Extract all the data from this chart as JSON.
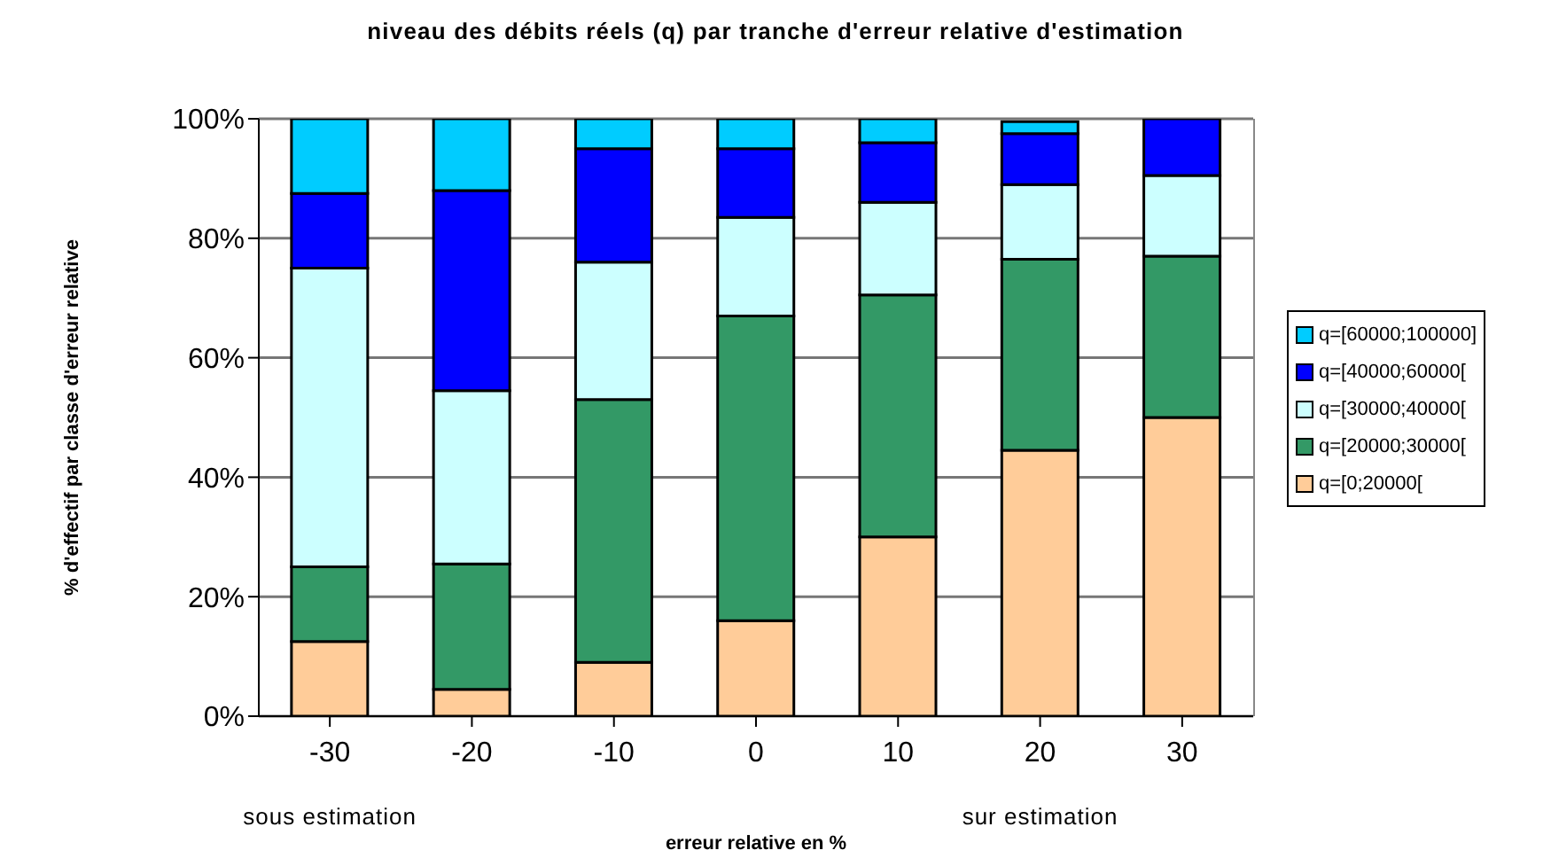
{
  "chart_data": {
    "type": "bar",
    "stacked": true,
    "title": "niveau des débits réels (q) par tranche d'erreur relative d'estimation",
    "xlabel": "erreur relative en %",
    "ylabel": "% d'effectif par classe d'erreur relative",
    "categories": [
      "-30",
      "-20",
      "-10",
      "0",
      "10",
      "20",
      "30"
    ],
    "series": [
      {
        "name": "q=[0;20000[",
        "color": "#ffcc99",
        "values": [
          12.5,
          4.5,
          9,
          16,
          30,
          44.5,
          50
        ]
      },
      {
        "name": "q=[20000;30000[",
        "color": "#339966",
        "values": [
          12.5,
          21,
          44,
          51,
          40.5,
          32,
          27
        ]
      },
      {
        "name": "q=[30000;40000[",
        "color": "#ccffff",
        "values": [
          50,
          29,
          23,
          16.5,
          15.5,
          12.5,
          13.5
        ]
      },
      {
        "name": "q=[40000;60000[",
        "color": "#0000ff",
        "values": [
          12.5,
          33.5,
          19,
          11.5,
          10,
          8.5,
          9.5
        ]
      },
      {
        "name": "q=[60000;100000]",
        "color": "#00ccff",
        "values": [
          12.5,
          12,
          5,
          5,
          4,
          2,
          0
        ]
      }
    ],
    "ylim": [
      0,
      100
    ],
    "yticks": [
      {
        "value": 0,
        "label": "0%"
      },
      {
        "value": 20,
        "label": "20%"
      },
      {
        "value": 40,
        "label": "40%"
      },
      {
        "value": 60,
        "label": "60%"
      },
      {
        "value": 80,
        "label": "80%"
      },
      {
        "value": 100,
        "label": "100%"
      }
    ],
    "grid": "y",
    "legend": "right",
    "annotations": [
      "sous estimation",
      "sur estimation"
    ]
  }
}
